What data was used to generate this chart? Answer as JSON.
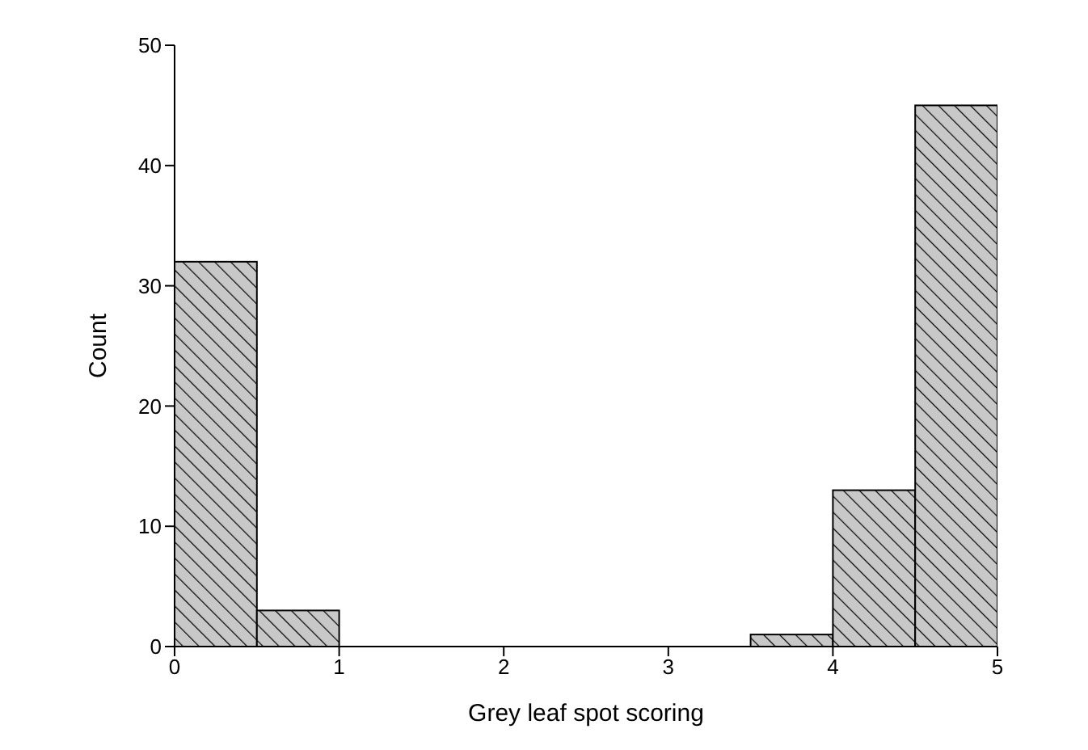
{
  "chart_data": {
    "type": "histogram",
    "xlabel": "Grey leaf spot scoring",
    "ylabel": "Count",
    "bins": [
      0,
      0.5,
      1,
      1.5,
      2,
      2.5,
      3,
      3.5,
      4,
      4.5,
      5
    ],
    "values": [
      32,
      3,
      0,
      0,
      0,
      0,
      0,
      1,
      13,
      45
    ],
    "color": "#c8c8c8",
    "xlim": [
      0,
      5
    ],
    "xticks": [
      0,
      1,
      2,
      3,
      4,
      5
    ],
    "ylim": [
      0,
      50
    ],
    "yticks": [
      0,
      10,
      20,
      30,
      40,
      50
    ],
    "grid": false,
    "legend": false
  }
}
